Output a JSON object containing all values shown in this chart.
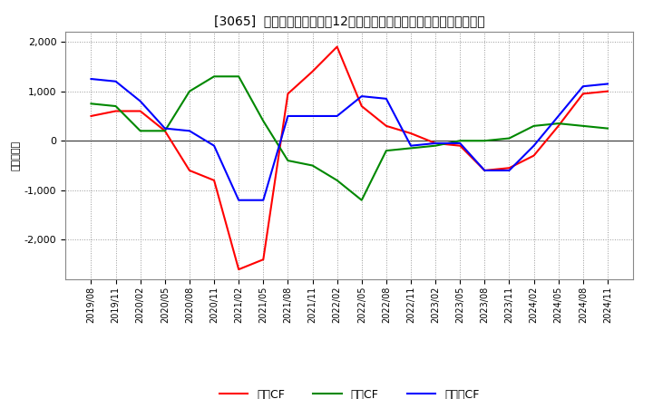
{
  "title": "[3065]  キャッシュフローの12か月移動合計の対前年同期増減額の推移",
  "ylabel": "（百万円）",
  "x_labels": [
    "2019/08",
    "2019/11",
    "2020/02",
    "2020/05",
    "2020/08",
    "2020/11",
    "2021/02",
    "2021/05",
    "2021/08",
    "2021/11",
    "2022/02",
    "2022/05",
    "2022/08",
    "2022/11",
    "2023/02",
    "2023/05",
    "2023/08",
    "2023/11",
    "2024/02",
    "2024/05",
    "2024/08",
    "2024/11"
  ],
  "eigyo_cf": [
    500,
    600,
    600,
    200,
    -600,
    -800,
    -2600,
    -2400,
    950,
    1400,
    1900,
    700,
    300,
    150,
    -50,
    -100,
    -600,
    -550,
    -300,
    300,
    950,
    1000
  ],
  "toshi_cf": [
    750,
    700,
    200,
    200,
    1000,
    1300,
    1300,
    400,
    -400,
    -500,
    -800,
    -1200,
    -200,
    -150,
    -100,
    0,
    0,
    50,
    300,
    350,
    300,
    250
  ],
  "free_cf": [
    1250,
    1200,
    800,
    250,
    200,
    -100,
    -1200,
    -1200,
    500,
    500,
    500,
    900,
    850,
    -100,
    -50,
    -50,
    -600,
    -600,
    -100,
    500,
    1100,
    1150
  ],
  "ylim": [
    -2800,
    2200
  ],
  "yticks": [
    -2000,
    -1000,
    0,
    1000,
    2000
  ],
  "line_colors": {
    "eigyo": "#ff0000",
    "toshi": "#008800",
    "free": "#0000ff"
  },
  "legend_labels": {
    "eigyo": "営業CF",
    "toshi": "投資CF",
    "free": "フリーCF"
  },
  "background_color": "#ffffff",
  "plot_bg_color": "#ffffff",
  "grid_color": "#999999"
}
